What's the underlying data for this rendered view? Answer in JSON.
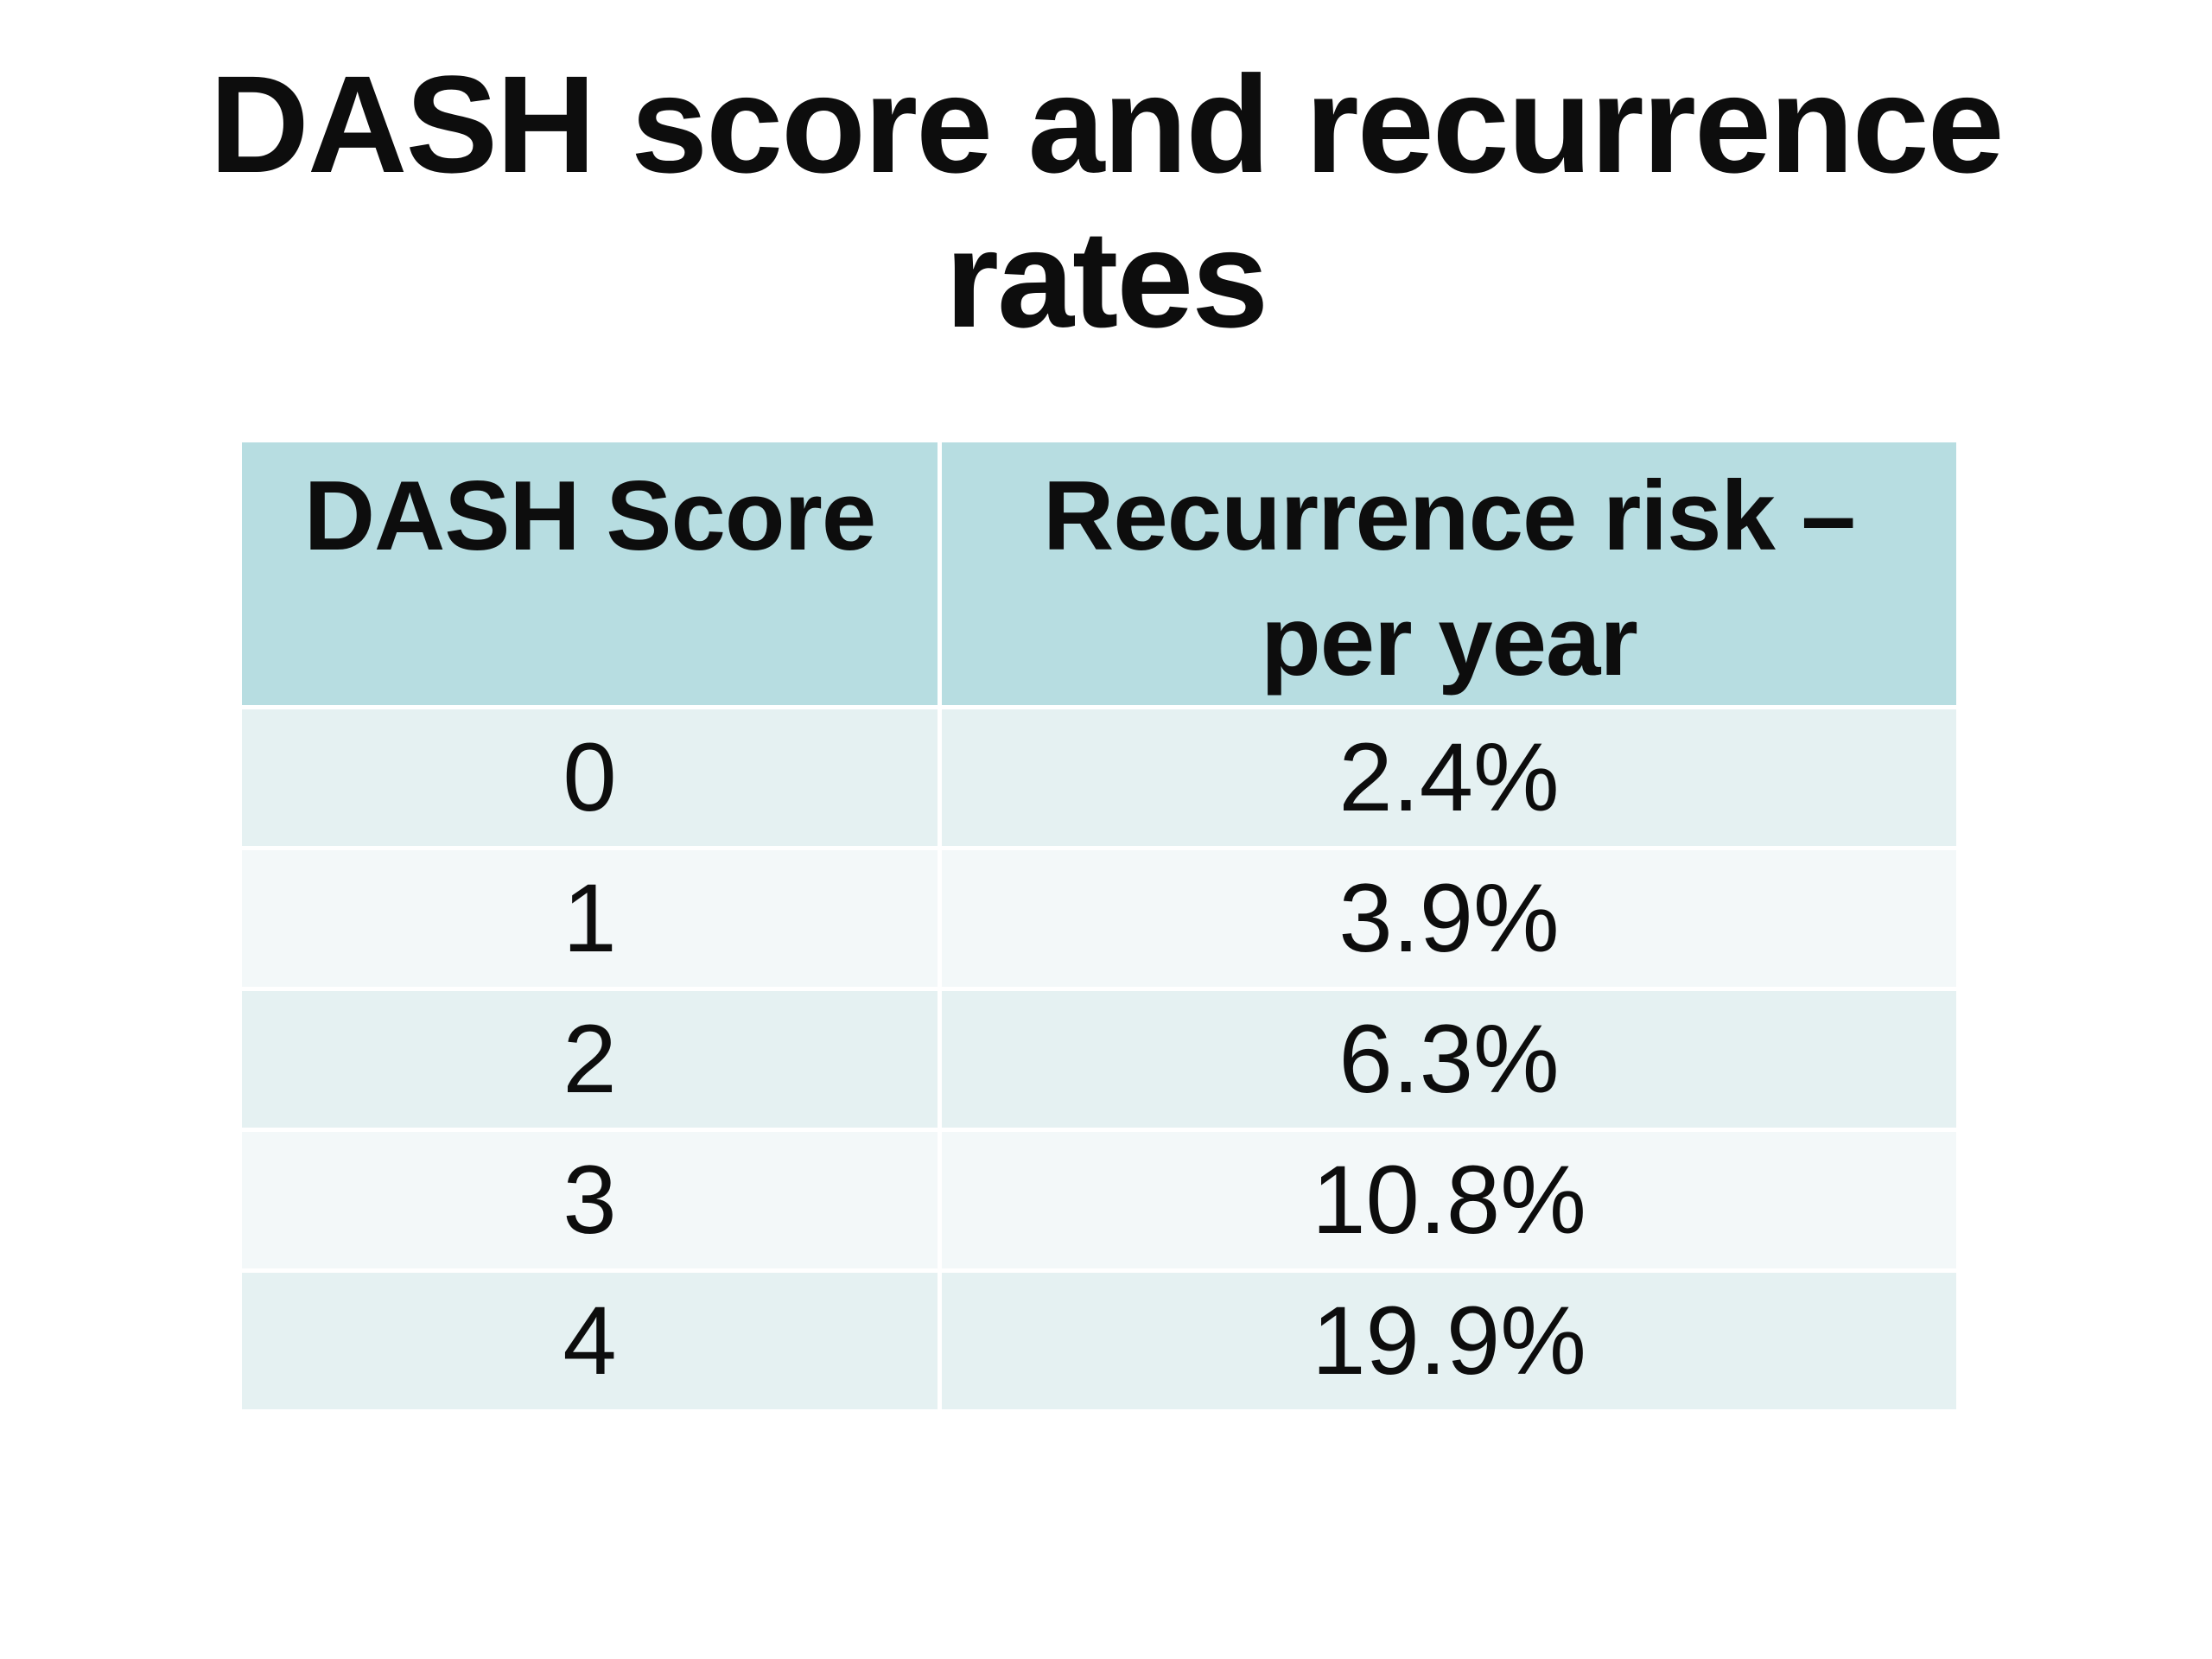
{
  "slide": {
    "title": "DASH score and recurrence\nrates"
  },
  "table": {
    "headers": [
      {
        "label": "DASH Score"
      },
      {
        "label": "Recurrence risk –\nper year"
      }
    ],
    "rows": [
      {
        "score": "0",
        "risk": "2.4%"
      },
      {
        "score": "1",
        "risk": "3.9%"
      },
      {
        "score": "2",
        "risk": "6.3%"
      },
      {
        "score": "3",
        "risk": "10.8%"
      },
      {
        "score": "4",
        "risk": "19.9%"
      }
    ]
  },
  "colors": {
    "background": "#ffffff",
    "header_bg": "#b7dde1",
    "row_even_bg": "#e5f1f2",
    "row_odd_bg": "#f3f8f9",
    "divider": "#ffffff",
    "text": "#0d0d0d"
  }
}
